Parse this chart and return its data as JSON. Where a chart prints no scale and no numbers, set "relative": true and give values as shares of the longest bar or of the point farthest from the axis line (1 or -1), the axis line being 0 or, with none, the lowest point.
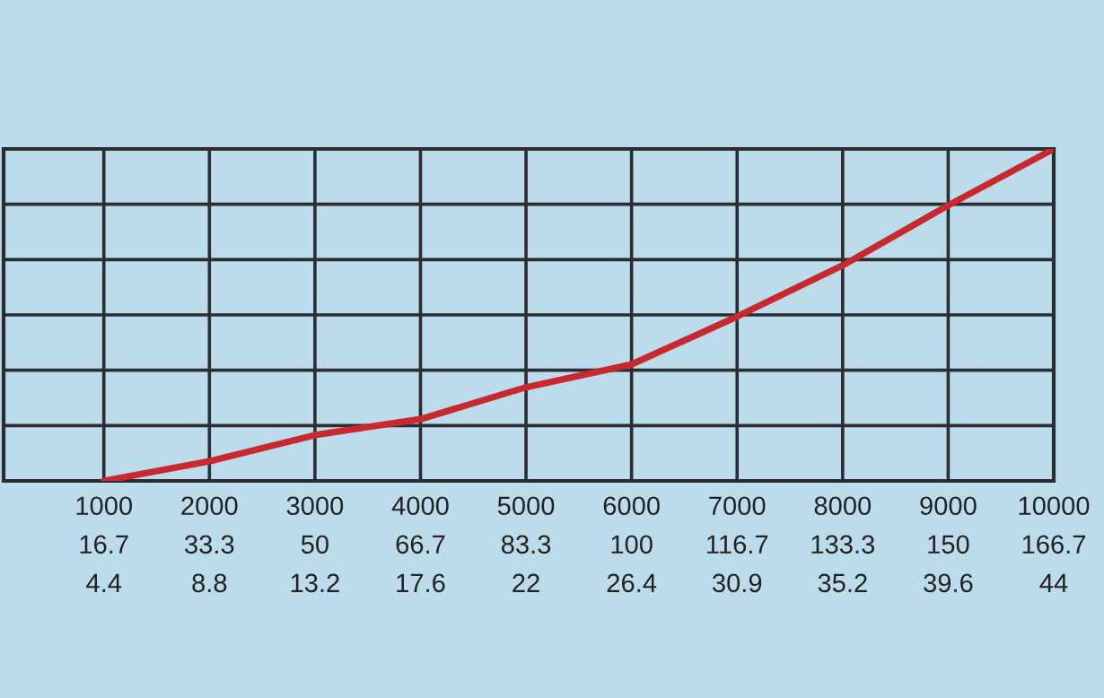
{
  "chart_data": {
    "type": "line",
    "relative": true,
    "categories": [
      "1000\n16.7\n4.4",
      "2000\n33.3\n8.8",
      "3000\n50\n13.2",
      "4000\n66.7\n17.6",
      "5000\n83.3\n22",
      "6000\n100\n26.4",
      "7000\n116.7\n30.9",
      "8000\n133.3\n35.2",
      "9000\n150\n39.6",
      "10000\n166.7\n44"
    ],
    "series": [
      {
        "color": "#c8282e",
        "values": [
          0,
          0.059,
          0.138,
          0.186,
          0.282,
          0.351,
          0.495,
          0.649,
          0.83,
          1
        ]
      }
    ],
    "grid": true,
    "marker": "none",
    "line_style": "solid"
  }
}
